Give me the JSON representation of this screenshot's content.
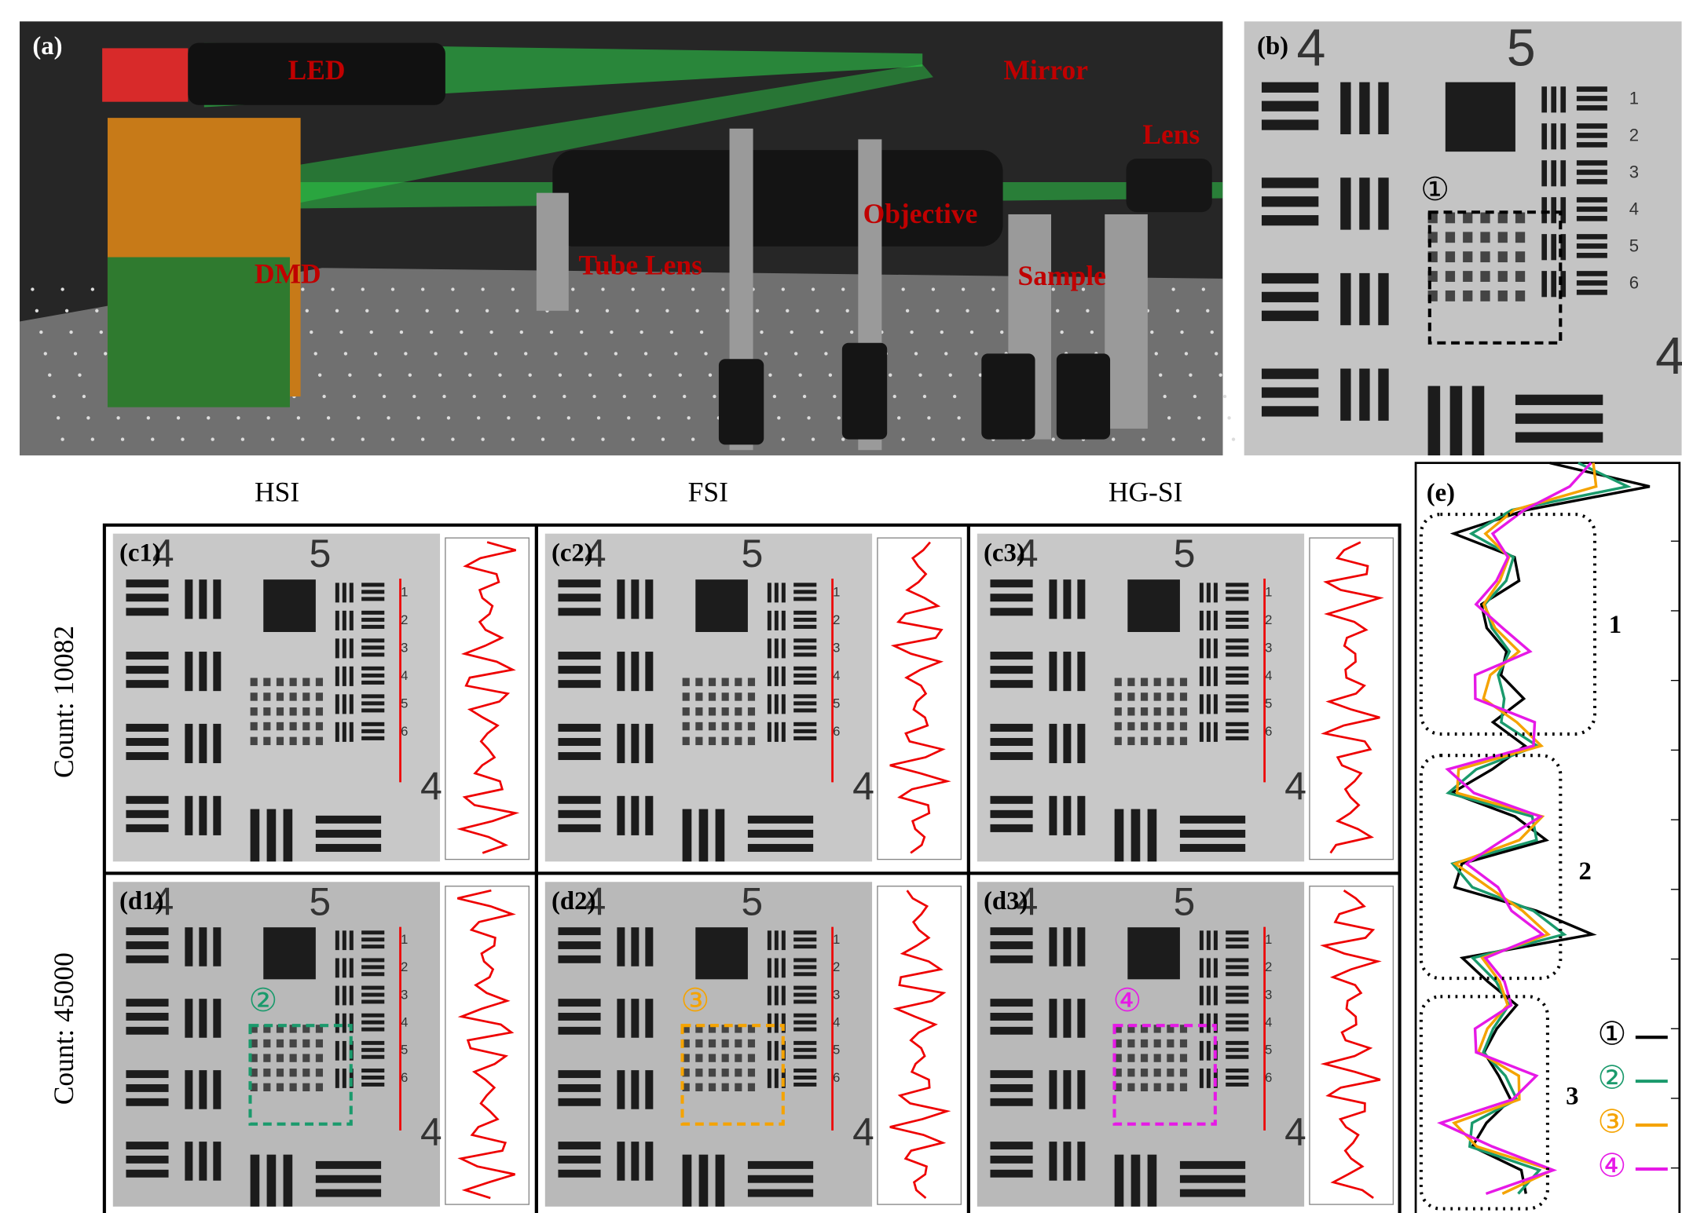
{
  "panel_a": {
    "label": "(a)",
    "annotations": [
      "LED",
      "Mirror",
      "Lens",
      "DMD",
      "Tube Lens",
      "Objective",
      "Sample"
    ]
  },
  "panel_b": {
    "label": "(b)",
    "roi_label": "①"
  },
  "target": {
    "group_labels": [
      "4",
      "5"
    ],
    "element_labels": [
      "1",
      "2",
      "3",
      "4",
      "5",
      "6"
    ]
  },
  "column_headers": [
    "HSI",
    "FSI",
    "HG-SI"
  ],
  "row_headers": [
    "Count: 10082",
    "Count: 45000"
  ],
  "panels": [
    [
      "(c1)",
      "(c2)",
      "(c3)"
    ],
    [
      "(d1)",
      "(d2)",
      "(d3)"
    ]
  ],
  "roi_labels": [
    {
      "text": "②",
      "color": "#1a9a6c"
    },
    {
      "text": "③",
      "color": "#f5a300"
    },
    {
      "text": "④",
      "color": "#e619e6"
    }
  ],
  "panel_e": {
    "label": "(e)",
    "regions": [
      "1",
      "2",
      "3"
    ],
    "legend": [
      {
        "name": "①",
        "color": "#000000"
      },
      {
        "name": "②",
        "color": "#1a9a6c"
      },
      {
        "name": "③",
        "color": "#f5a300"
      },
      {
        "name": "④",
        "color": "#e619e6"
      }
    ]
  }
}
